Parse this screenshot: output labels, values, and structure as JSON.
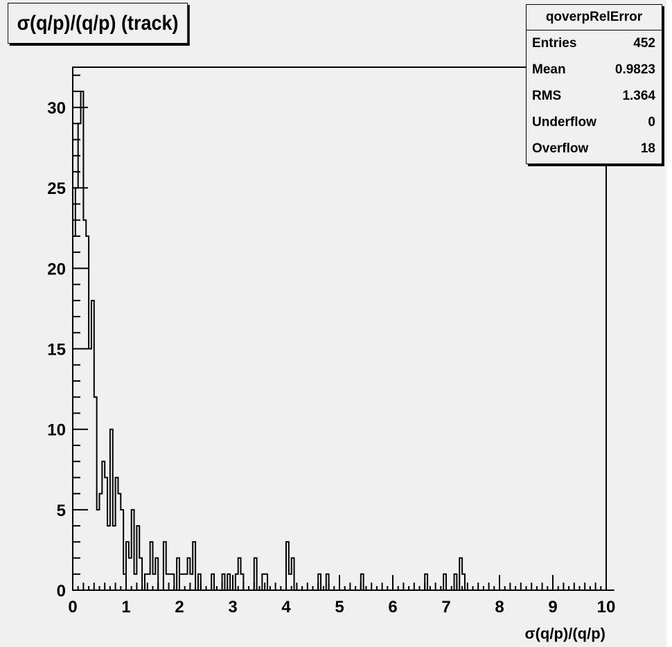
{
  "title": "σ(q/p)/(q/p) (track)",
  "stats": {
    "name": "qoverpRelError",
    "rows": [
      {
        "label": "Entries",
        "value": "452"
      },
      {
        "label": "Mean",
        "value": "0.9823"
      },
      {
        "label": "RMS",
        "value": "1.364"
      },
      {
        "label": "Underflow",
        "value": "0"
      },
      {
        "label": "Overflow",
        "value": "18"
      }
    ]
  },
  "chart_data": {
    "type": "bar",
    "style": "step-histogram",
    "xlabel": "σ(q/p)/(q/p)",
    "ylabel": "",
    "xlim": [
      0,
      10
    ],
    "ylim": [
      0,
      32.5
    ],
    "bin_width": 0.05,
    "x_ticks": [
      "0",
      "1",
      "2",
      "3",
      "4",
      "5",
      "6",
      "7",
      "8",
      "9",
      "10"
    ],
    "y_ticks": [
      "0",
      "5",
      "10",
      "15",
      "20",
      "25",
      "30"
    ],
    "y_tick_values": [
      0,
      5,
      10,
      15,
      20,
      25,
      30
    ],
    "values": [
      22,
      25,
      29,
      31,
      23,
      22,
      15,
      18,
      12,
      5,
      6,
      8,
      7,
      4,
      10,
      4,
      7,
      6,
      5,
      1,
      3,
      2,
      5,
      1,
      4,
      2,
      0,
      1,
      1,
      3,
      1,
      2,
      1,
      0,
      3,
      1,
      1,
      1,
      0,
      2,
      1,
      1,
      1,
      2,
      1,
      3,
      0,
      1,
      0,
      0,
      0,
      0,
      1,
      0,
      0,
      0,
      1,
      0,
      1,
      0,
      0,
      1,
      2,
      1,
      0,
      0,
      0,
      0,
      0,
      0,
      0,
      1,
      1,
      0,
      0,
      0,
      0,
      0,
      0,
      0,
      3,
      1,
      1,
      0,
      0,
      0,
      0,
      0,
      0,
      0,
      0,
      0,
      1,
      0,
      0,
      1,
      0,
      0,
      0,
      0,
      0,
      0,
      0,
      0,
      0,
      0,
      0,
      0,
      1,
      0,
      0,
      0,
      0,
      0,
      0,
      0,
      0,
      0,
      0,
      0,
      0,
      0,
      0,
      0,
      0,
      0,
      0,
      0,
      0,
      0,
      0,
      0,
      1,
      0,
      0,
      0,
      0,
      0,
      0,
      1,
      0,
      0,
      0,
      1,
      0,
      2,
      1,
      0,
      0,
      0,
      0,
      0,
      0,
      0,
      0,
      0,
      0,
      0,
      0,
      0,
      0,
      0,
      0,
      0,
      0,
      0,
      0,
      0,
      0,
      0,
      0,
      0,
      0,
      0,
      0,
      0,
      0,
      0,
      0,
      0,
      0,
      0,
      0,
      0,
      0,
      0,
      0,
      0,
      0,
      0,
      0,
      0,
      0,
      0,
      0,
      0,
      0,
      0,
      0,
      0,
      0,
      0,
      0
    ],
    "overrides": {
      "1.6": 0,
      "1.9": 0,
      "2.0": 1,
      "3.4": 2,
      "3.6": 1,
      "4.1": 2
    }
  }
}
